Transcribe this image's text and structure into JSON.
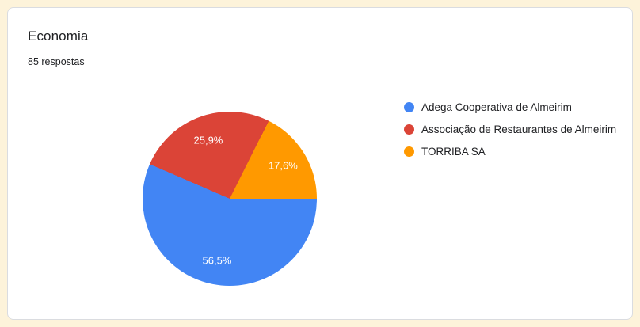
{
  "page": {
    "background_color": "#fdf3da",
    "card_background": "#ffffff",
    "card_border_color": "#dadce0"
  },
  "chart_data": {
    "type": "pie",
    "title": "Economia",
    "responses_label": "85 respostas",
    "legend_position": "right",
    "start_angle_deg": 90,
    "label_radius_factor": 0.72,
    "segments": [
      {
        "label": "Adega Cooperativa de Almeirim",
        "value": 56.5,
        "value_label": "56,5%",
        "color": "#4285f4"
      },
      {
        "label": "Associação de Restaurantes de Almeirim",
        "value": 25.9,
        "value_label": "25,9%",
        "color": "#db4437"
      },
      {
        "label": "TORRIBA SA",
        "value": 17.6,
        "value_label": "17,6%",
        "color": "#ff9900"
      }
    ]
  }
}
